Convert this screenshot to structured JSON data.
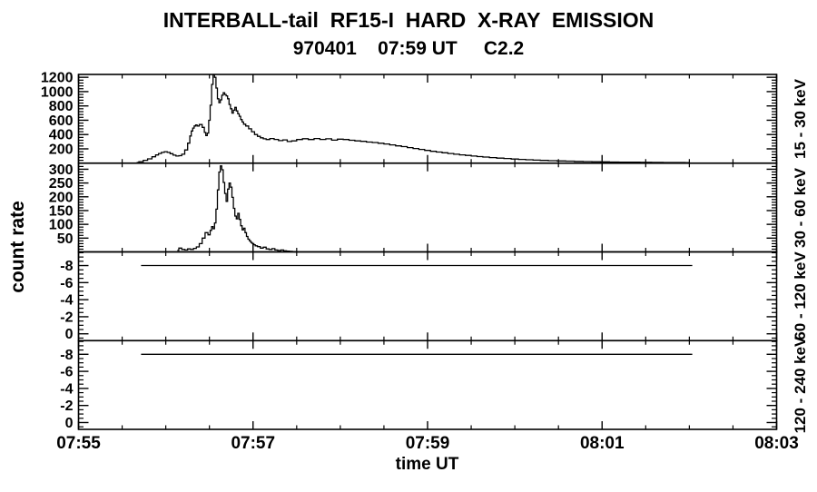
{
  "chart_data": {
    "type": "line",
    "title": "INTERBALL-tail  RF15-I  HARD  X-RAY  EMISSION",
    "subtitle": "970401    07:59 UT     C2.2",
    "xlabel": "time UT",
    "ylabel": "count rate",
    "grid": false,
    "x_axis": {
      "tick_labels": [
        "07:55",
        "07:57",
        "07:59",
        "08:01",
        "08:03"
      ],
      "tick_minutes": [
        0,
        2,
        4,
        6,
        8
      ],
      "minor_step_minutes": 0.5,
      "range_minutes": [
        0,
        8
      ]
    },
    "panels": [
      {
        "label": "15 - 30 keV",
        "y_range": [
          0,
          1240
        ],
        "major_ticks": [
          200,
          400,
          600,
          800,
          1000,
          1200
        ],
        "major_step": 200,
        "minor_step": 40,
        "t_seconds": [
          40,
          43,
          46,
          49,
          52,
          54,
          56,
          58,
          60,
          62,
          64,
          66,
          68,
          70,
          72,
          74,
          76,
          77,
          78,
          79,
          80,
          81,
          82,
          84,
          86,
          87,
          88,
          89,
          90,
          91,
          92,
          93,
          94,
          95,
          96,
          97,
          98,
          99,
          100,
          101,
          102,
          103,
          104,
          105,
          106,
          107,
          108,
          109,
          110,
          111,
          112,
          113,
          114,
          116,
          118,
          120,
          122,
          124,
          126,
          128,
          130,
          133,
          136,
          139,
          142,
          145,
          148,
          152,
          156,
          160,
          164,
          168,
          172,
          176,
          180,
          184,
          188,
          192,
          196,
          200,
          204,
          208,
          212,
          216,
          220,
          224,
          228,
          232,
          236,
          240,
          244,
          248,
          252,
          256,
          260,
          264,
          268,
          272,
          276,
          280,
          285,
          290,
          295,
          300,
          305,
          310,
          315,
          320,
          326,
          332,
          338,
          344,
          350,
          356,
          362,
          368,
          375,
          382,
          390,
          398,
          406,
          414,
          420
        ],
        "values": [
          10,
          20,
          40,
          60,
          90,
          115,
          135,
          150,
          160,
          150,
          132,
          112,
          100,
          105,
          125,
          185,
          280,
          380,
          450,
          490,
          520,
          535,
          520,
          540,
          500,
          430,
          385,
          420,
          600,
          810,
          1100,
          1235,
          1200,
          1050,
          900,
          845,
          885,
          950,
          985,
          960,
          940,
          900,
          820,
          760,
          700,
          740,
          780,
          730,
          690,
          655,
          610,
          575,
          545,
          520,
          480,
          440,
          400,
          375,
          355,
          340,
          330,
          345,
          332,
          315,
          325,
          302,
          312,
          330,
          342,
          330,
          345,
          332,
          340,
          322,
          336,
          330,
          320,
          312,
          305,
          295,
          288,
          278,
          268,
          255,
          242,
          232,
          218,
          205,
          192,
          178,
          166,
          155,
          145,
          135,
          125,
          116,
          108,
          100,
          92,
          85,
          78,
          71,
          65,
          58,
          53,
          48,
          43,
          39,
          35,
          31,
          28,
          25,
          22,
          20,
          18,
          16,
          14,
          13,
          12,
          11,
          10,
          9,
          8
        ]
      },
      {
        "label": "30 - 60 keV",
        "y_range": [
          0,
          322
        ],
        "major_ticks": [
          50,
          100,
          150,
          200,
          250,
          300
        ],
        "major_step": 50,
        "minor_step": 10,
        "t_seconds": [
          68,
          70,
          72,
          74,
          76,
          78,
          80,
          82,
          84,
          86,
          88,
          90,
          91,
          92,
          93,
          94,
          95,
          96,
          97,
          98,
          99,
          100,
          101,
          102,
          103,
          104,
          105,
          106,
          107,
          108,
          109,
          110,
          111,
          112,
          113,
          114,
          115,
          116,
          117,
          118,
          119,
          120,
          121,
          122,
          124,
          126,
          128,
          130,
          132,
          134,
          136,
          138,
          140,
          142,
          144,
          146,
          148,
          150
        ],
        "values": [
          6,
          14,
          9,
          7,
          11,
          9,
          13,
          18,
          30,
          50,
          70,
          62,
          78,
          92,
          84,
          105,
          155,
          225,
          290,
          312,
          298,
          252,
          212,
          183,
          228,
          250,
          235,
          198,
          158,
          130,
          120,
          140,
          118,
          95,
          80,
          86,
          70,
          56,
          46,
          40,
          34,
          30,
          26,
          22,
          19,
          14,
          17,
          11,
          9,
          12,
          7,
          5,
          7,
          4,
          3,
          2,
          1,
          0
        ]
      },
      {
        "label": "60 - 120 keV",
        "y_range": [
          0.8,
          -9.6
        ],
        "major_ticks": [
          -8,
          -6,
          -4,
          -2,
          0
        ],
        "major_step": 2,
        "minor_step": 0.5,
        "t_seconds": [
          43,
          422
        ],
        "values": [
          -8,
          -8
        ]
      },
      {
        "label": "120 - 240 keV",
        "y_range": [
          0.8,
          -9.6
        ],
        "major_ticks": [
          -8,
          -6,
          -4,
          -2,
          0
        ],
        "major_step": 2,
        "minor_step": 0.5,
        "t_seconds": [
          43,
          422
        ],
        "values": [
          -8,
          -8
        ]
      }
    ]
  }
}
